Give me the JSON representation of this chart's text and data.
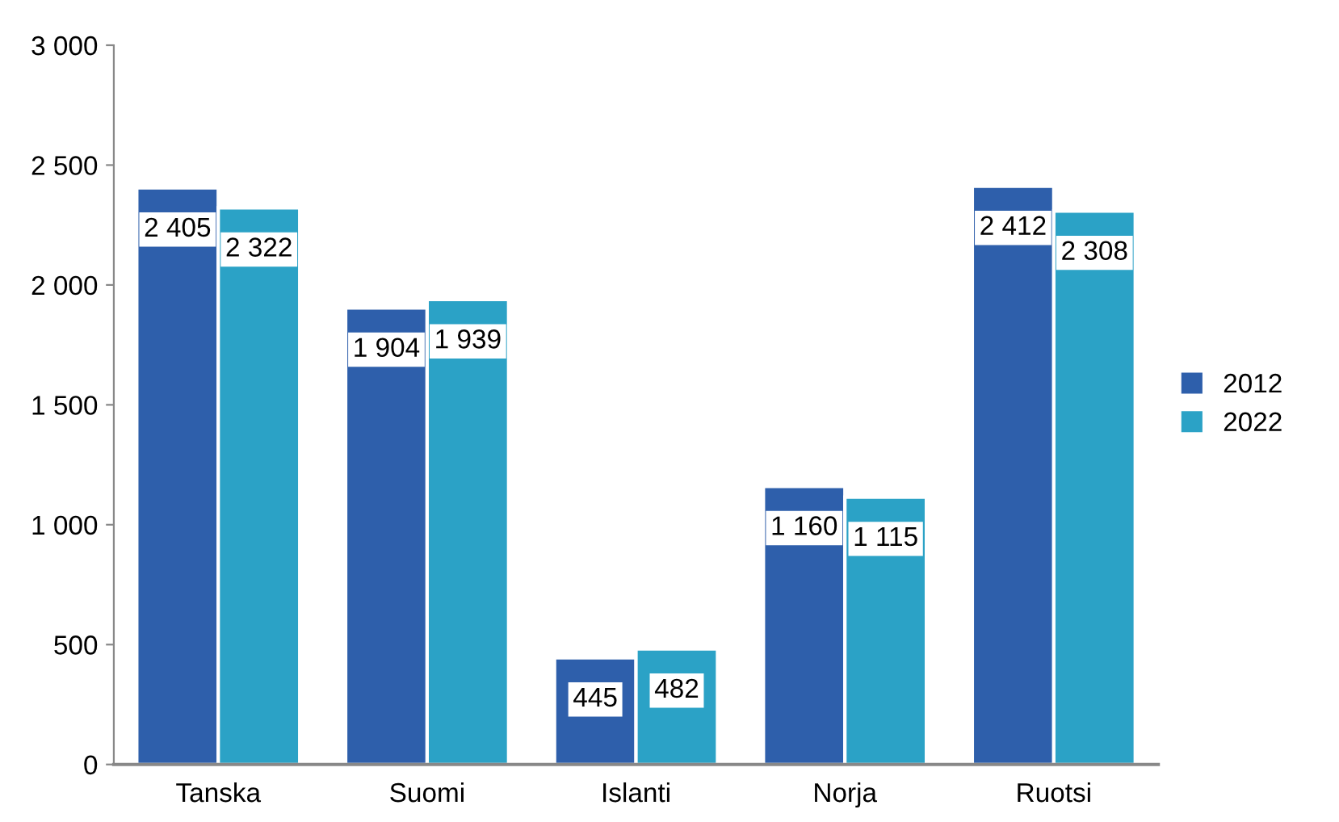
{
  "chart_data": {
    "type": "bar",
    "categories": [
      "Tanska",
      "Suomi",
      "Islanti",
      "Norja",
      "Ruotsi"
    ],
    "series": [
      {
        "name": "2012",
        "color": "#2e5fab",
        "values": [
          2405,
          1904,
          445,
          1160,
          2412
        ],
        "value_labels": [
          "2 405",
          "1 904",
          "445",
          "1 160",
          "2 412"
        ]
      },
      {
        "name": "2022",
        "color": "#2ba2c6",
        "values": [
          2322,
          1939,
          482,
          1115,
          2308
        ],
        "value_labels": [
          "2 322",
          "1 939",
          "482",
          "1 115",
          "2 308"
        ]
      }
    ],
    "ylim": [
      0,
      3000
    ],
    "yticks": [
      0,
      500,
      {
        "value": 1000,
        "label": "1 000"
      },
      {
        "value": 1500,
        "label": "1 500"
      },
      {
        "value": 2000,
        "label": "2 000"
      },
      {
        "value": 2500,
        "label": "2 500"
      },
      {
        "value": 3000,
        "label": "3 000"
      }
    ],
    "grid": false,
    "legend": "right"
  }
}
